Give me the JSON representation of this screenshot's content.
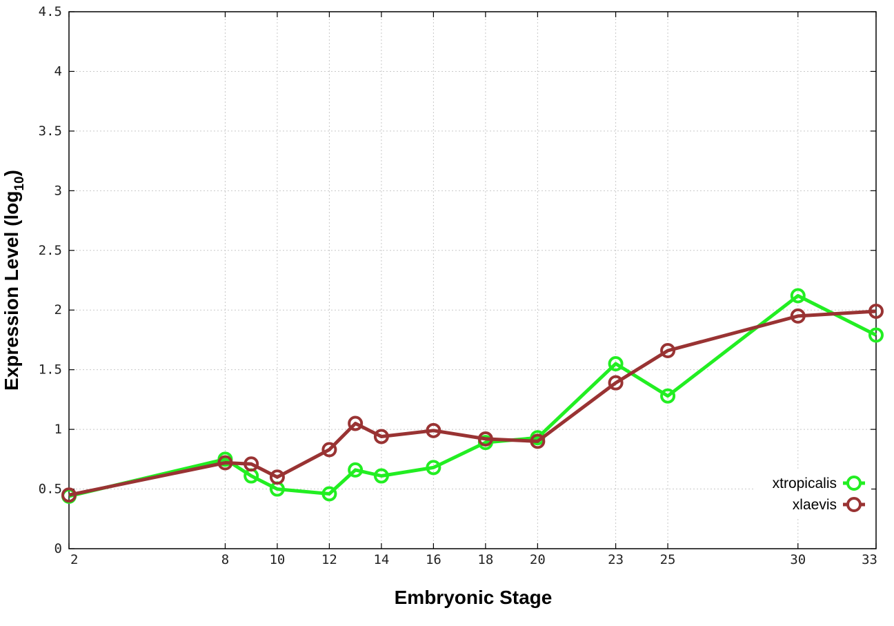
{
  "chart_data": {
    "type": "line",
    "xlabel": "Embryonic Stage",
    "ylabel_main": "Expression Level (log",
    "ylabel_sub": "10",
    "ylabel_close": ")",
    "xlim": [
      2,
      33
    ],
    "ylim": [
      0,
      4.5
    ],
    "x_ticks": [
      2,
      8,
      10,
      12,
      14,
      16,
      18,
      20,
      23,
      25,
      30,
      33
    ],
    "y_ticks": [
      0,
      0.5,
      1,
      1.5,
      2,
      2.5,
      3,
      3.5,
      4,
      4.5
    ],
    "y_tick_labels": [
      "0",
      "0.5",
      "1",
      "1.5",
      "2",
      "2.5",
      "3",
      "3.5",
      "4",
      "4.5"
    ],
    "grid": true,
    "legend_position": "bottom-right",
    "series": [
      {
        "name": "xtropicalis",
        "color": "#22ee22",
        "x": [
          2,
          8,
          9,
          10,
          12,
          13,
          14,
          16,
          18,
          20,
          23,
          25,
          30,
          33
        ],
        "y": [
          0.44,
          0.75,
          0.61,
          0.5,
          0.46,
          0.66,
          0.61,
          0.68,
          0.89,
          0.93,
          1.55,
          1.28,
          2.12,
          1.79
        ]
      },
      {
        "name": "xlaevis",
        "color": "#993333",
        "x": [
          2,
          8,
          9,
          10,
          12,
          13,
          14,
          16,
          18,
          20,
          23,
          25,
          30,
          33
        ],
        "y": [
          0.45,
          0.72,
          0.71,
          0.6,
          0.83,
          1.05,
          0.94,
          0.99,
          0.92,
          0.9,
          1.39,
          1.66,
          1.95,
          1.99
        ]
      }
    ]
  }
}
